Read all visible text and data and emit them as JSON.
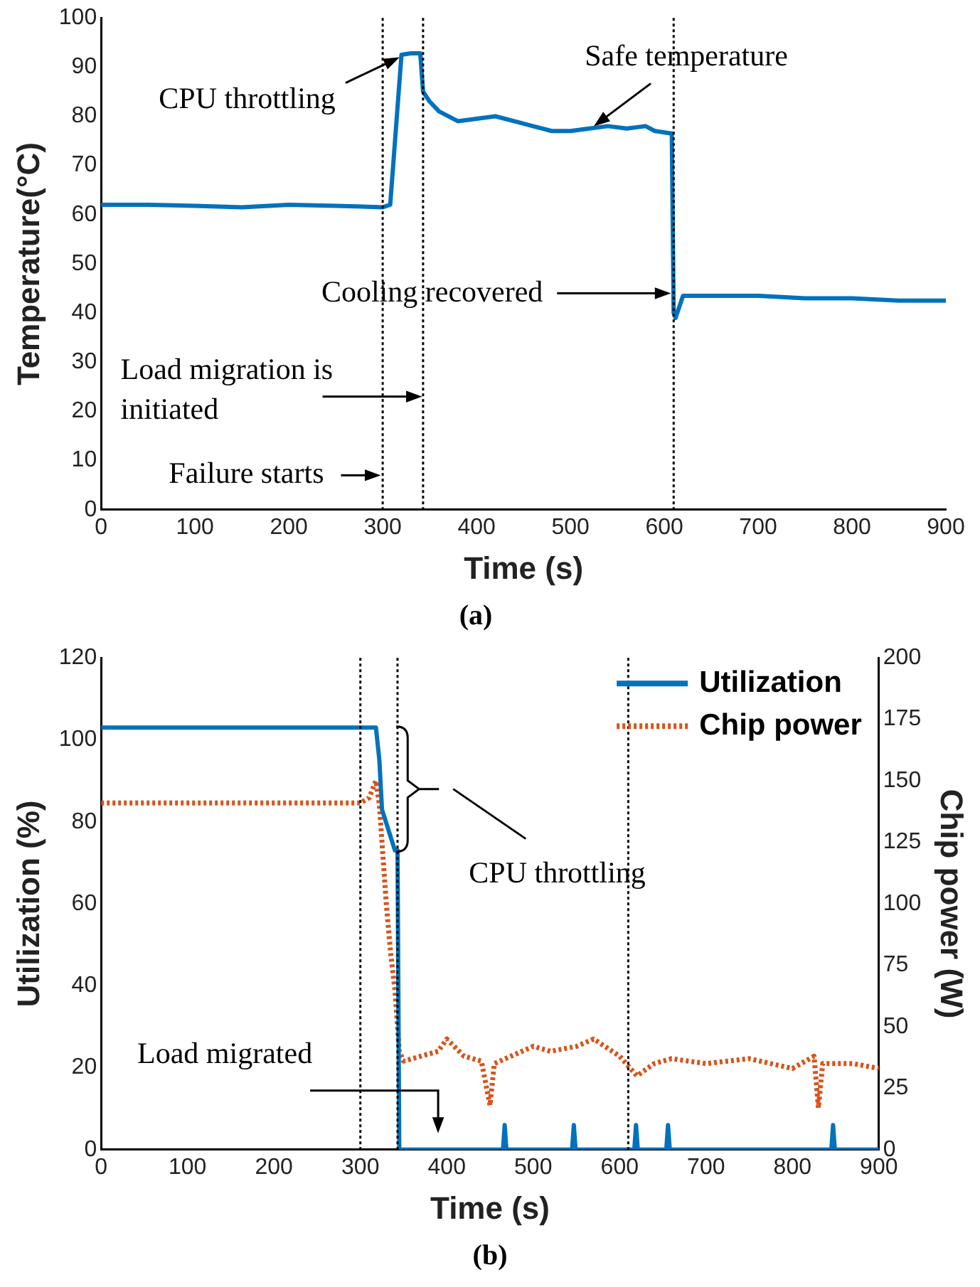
{
  "chart_data": [
    {
      "type": "line",
      "title": "(a)",
      "xlabel": "Time (s)",
      "ylabel": "Temperature(°C)",
      "xlim": [
        0,
        900
      ],
      "xticks": [
        0,
        100,
        200,
        300,
        400,
        500,
        600,
        700,
        800,
        900
      ],
      "ylim": [
        0,
        100
      ],
      "yticks": [
        0,
        10,
        20,
        30,
        40,
        50,
        60,
        70,
        80,
        90,
        100
      ],
      "grid": false,
      "legend": false,
      "marker": "none",
      "line_style": "solid",
      "series": [
        {
          "color": "#0072bd",
          "x": [
            0,
            50,
            100,
            150,
            200,
            250,
            300,
            308,
            320,
            330,
            340,
            343,
            350,
            360,
            380,
            400,
            420,
            440,
            460,
            480,
            500,
            520,
            540,
            560,
            580,
            590,
            608,
            610,
            612,
            620,
            650,
            700,
            750,
            800,
            850,
            900
          ],
          "values": [
            62,
            62,
            61.8,
            61.5,
            62,
            61.8,
            61.5,
            62,
            92.5,
            92.8,
            92.8,
            85,
            83,
            81,
            79,
            79.5,
            80,
            79,
            78,
            77,
            77,
            77.5,
            78,
            77.5,
            78,
            77,
            76.5,
            40,
            39,
            43.5,
            43.5,
            43.5,
            43,
            43,
            42.5,
            42.5
          ]
        }
      ],
      "ref_lines": [
        {
          "axis": "x",
          "value": 300,
          "line_style": "dotted",
          "color": "#000000"
        },
        {
          "axis": "x",
          "value": 343,
          "line_style": "dotted",
          "color": "#000000"
        },
        {
          "axis": "x",
          "value": 610,
          "line_style": "dotted",
          "color": "#000000"
        }
      ],
      "annotations": [
        {
          "text": "CPU throttling",
          "x": 318,
          "y": 92
        },
        {
          "text": "Safe temperature",
          "x": 525,
          "y": 78
        },
        "Cooling recovered",
        "Load migration is initiated",
        {
          "text": "Failure starts",
          "x": 298,
          "y": 7
        }
      ]
    },
    {
      "type": "line",
      "title": "(b)",
      "xlabel": "Time (s)",
      "ylabel": "Utilization (%)",
      "y2label": "Chip power (W)",
      "xlim": [
        0,
        900
      ],
      "xticks": [
        0,
        100,
        200,
        300,
        400,
        500,
        600,
        700,
        800,
        900
      ],
      "ylim": [
        0,
        120
      ],
      "yticks": [
        0,
        20,
        40,
        60,
        80,
        100,
        120
      ],
      "y2lim": [
        0,
        200
      ],
      "y2ticks": [
        0,
        25,
        50,
        75,
        100,
        125,
        150,
        175,
        200
      ],
      "grid": false,
      "legend": "top right",
      "marker": "none",
      "series": [
        {
          "name": "Utilization",
          "color": "#0072bd",
          "line_style": "solid",
          "x": [
            0,
            318,
            322,
            325,
            340,
            343,
            345,
            465,
            467,
            469,
            545,
            547,
            549,
            617,
            619,
            621,
            654,
            656,
            658,
            845,
            847,
            849,
            900
          ],
          "values": [
            103,
            103,
            95,
            83,
            73,
            73,
            0,
            0,
            6,
            0,
            0,
            6,
            0,
            0,
            6,
            0,
            0,
            6,
            0,
            0,
            6,
            0,
            0
          ]
        },
        {
          "name": "Chip power",
          "color": "#d95319",
          "line_style": "dotted",
          "axis": "y2",
          "x": [
            0,
            300,
            310,
            318,
            322,
            325,
            330,
            335,
            340,
            345,
            350,
            370,
            390,
            400,
            420,
            440,
            450,
            455,
            500,
            520,
            550,
            570,
            600,
            620,
            640,
            660,
            700,
            750,
            800,
            825,
            830,
            835,
            870,
            900
          ],
          "values": [
            141,
            141,
            143,
            150,
            140,
            125,
            100,
            80,
            65,
            40,
            36,
            38,
            40,
            45,
            38,
            36,
            18,
            35,
            42,
            40,
            42,
            45,
            38,
            30,
            35,
            37,
            35,
            37,
            33,
            38,
            17,
            35,
            35,
            33
          ]
        }
      ],
      "ref_lines": [
        {
          "axis": "x",
          "value": 300,
          "line_style": "dotted",
          "color": "#000000"
        },
        {
          "axis": "x",
          "value": 343,
          "line_style": "dotted",
          "color": "#000000"
        },
        {
          "axis": "x",
          "value": 610,
          "line_style": "dotted",
          "color": "#000000"
        }
      ],
      "annotations": [
        "CPU throttling",
        "Load migrated"
      ]
    }
  ]
}
